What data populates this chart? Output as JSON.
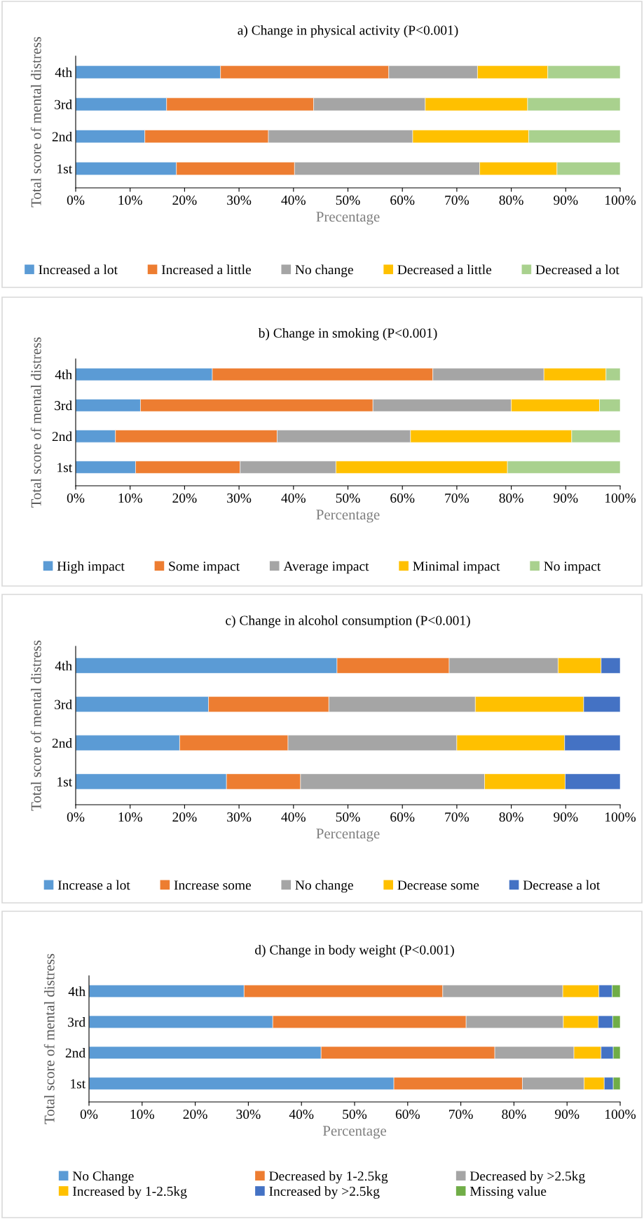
{
  "chart_data": [
    {
      "type": "bar",
      "orientation": "horizontal",
      "stacked": true,
      "title": "a) Change in physical activity (P<0.001)",
      "xlabel": "Precentage",
      "ylabel": "Total score of mental distress",
      "categories": [
        "4th",
        "3rd",
        "2nd",
        "1st"
      ],
      "xlim": [
        0,
        100
      ],
      "xticks": [
        {
          "value": 0,
          "label": "0%"
        },
        {
          "value": 10,
          "label": "10%"
        },
        {
          "value": 20,
          "label": "20%"
        },
        {
          "value": 30,
          "label": "30%"
        },
        {
          "value": 40,
          "label": "40%"
        },
        {
          "value": 50,
          "label": "50%"
        },
        {
          "value": 60,
          "label": "60%"
        },
        {
          "value": 70,
          "label": "70%"
        },
        {
          "value": 80,
          "label": "80%"
        },
        {
          "value": 90,
          "label": "90%"
        },
        {
          "value": 100,
          "label": "100%"
        }
      ],
      "grid": false,
      "legend": "bottom",
      "series": [
        {
          "name": "Increased a lot",
          "color": "#5b9bd5",
          "values": [
            26.6,
            16.7,
            12.7,
            18.5
          ]
        },
        {
          "name": "Increased a little",
          "color": "#ed7d31",
          "values": [
            30.9,
            27.0,
            22.7,
            21.7
          ]
        },
        {
          "name": "No change",
          "color": "#a5a5a5",
          "values": [
            16.3,
            20.5,
            26.5,
            34.0
          ]
        },
        {
          "name": "Decreased a little",
          "color": "#ffc000",
          "values": [
            12.9,
            18.8,
            21.3,
            14.2
          ]
        },
        {
          "name": "Decreased a lot",
          "color": "#a9d18e",
          "values": [
            13.3,
            17.0,
            16.8,
            11.6
          ]
        }
      ]
    },
    {
      "type": "bar",
      "orientation": "horizontal",
      "stacked": true,
      "title": "b) Change in smoking (P<0.001)",
      "xlabel": "Percentage",
      "ylabel": "Total score of mental distress",
      "categories": [
        "4th",
        "3rd",
        "2nd",
        "1st"
      ],
      "xlim": [
        0,
        100
      ],
      "xticks": [
        {
          "value": 0,
          "label": "0%"
        },
        {
          "value": 10,
          "label": "10%"
        },
        {
          "value": 20,
          "label": "20%"
        },
        {
          "value": 30,
          "label": "30%"
        },
        {
          "value": 40,
          "label": "40%"
        },
        {
          "value": 50,
          "label": "50%"
        },
        {
          "value": 60,
          "label": "60%"
        },
        {
          "value": 70,
          "label": "70%"
        },
        {
          "value": 80,
          "label": "80%"
        },
        {
          "value": 90,
          "label": "90%"
        },
        {
          "value": 100,
          "label": "100%"
        }
      ],
      "grid": false,
      "legend": "bottom",
      "series": [
        {
          "name": "High impact",
          "color": "#5b9bd5",
          "values": [
            25.1,
            11.9,
            7.3,
            11.0
          ]
        },
        {
          "name": "Some impact",
          "color": "#ed7d31",
          "values": [
            40.5,
            42.7,
            29.7,
            19.2
          ]
        },
        {
          "name": "Average impact",
          "color": "#a5a5a5",
          "values": [
            20.4,
            25.4,
            24.5,
            17.6
          ]
        },
        {
          "name": "Minimal impact",
          "color": "#ffc000",
          "values": [
            11.4,
            16.2,
            29.6,
            31.5
          ]
        },
        {
          "name": "No impact",
          "color": "#a9d18e",
          "values": [
            2.6,
            3.8,
            8.9,
            20.7
          ]
        }
      ]
    },
    {
      "type": "bar",
      "orientation": "horizontal",
      "stacked": true,
      "title": "c) Change in alcohol consumption (P<0.001)",
      "xlabel": "Percentage",
      "ylabel": "Total score of mental distress",
      "categories": [
        "4th",
        "3rd",
        "2nd",
        "1st"
      ],
      "xlim": [
        0,
        100
      ],
      "xticks": [
        {
          "value": 0,
          "label": "0%"
        },
        {
          "value": 10,
          "label": "10%"
        },
        {
          "value": 20,
          "label": "20%"
        },
        {
          "value": 30,
          "label": "30%"
        },
        {
          "value": 40,
          "label": "40%"
        },
        {
          "value": 50,
          "label": "50%"
        },
        {
          "value": 60,
          "label": "60%"
        },
        {
          "value": 70,
          "label": "70%"
        },
        {
          "value": 80,
          "label": "80%"
        },
        {
          "value": 90,
          "label": "90%"
        },
        {
          "value": 100,
          "label": "100%"
        }
      ],
      "grid": false,
      "legend": "bottom",
      "series": [
        {
          "name": "Increase a lot",
          "color": "#5b9bd5",
          "values": [
            48.0,
            24.4,
            19.1,
            27.7
          ]
        },
        {
          "name": "Increase some",
          "color": "#ed7d31",
          "values": [
            20.6,
            22.1,
            19.9,
            13.6
          ]
        },
        {
          "name": "No change",
          "color": "#a5a5a5",
          "values": [
            20.0,
            26.9,
            31.0,
            33.8
          ]
        },
        {
          "name": "Decrease some",
          "color": "#ffc000",
          "values": [
            7.9,
            19.9,
            19.8,
            14.8
          ]
        },
        {
          "name": "Decrease a lot",
          "color": "#4472c4",
          "values": [
            3.5,
            6.7,
            10.2,
            10.1
          ]
        }
      ]
    },
    {
      "type": "bar",
      "orientation": "horizontal",
      "stacked": true,
      "title": "d) Change in body weight (P<0.001)",
      "xlabel": "Percentage",
      "ylabel": "Total score of mental distress",
      "categories": [
        "4th",
        "3rd",
        "2nd",
        "1st"
      ],
      "xlim": [
        0,
        100
      ],
      "xticks": [
        {
          "value": 0,
          "label": "0%"
        },
        {
          "value": 10,
          "label": "10%"
        },
        {
          "value": 20,
          "label": "20%"
        },
        {
          "value": 30,
          "label": "30%"
        },
        {
          "value": 40,
          "label": "40%"
        },
        {
          "value": 50,
          "label": "50%"
        },
        {
          "value": 60,
          "label": "60%"
        },
        {
          "value": 70,
          "label": "70%"
        },
        {
          "value": 80,
          "label": "80%"
        },
        {
          "value": 90,
          "label": "90%"
        },
        {
          "value": 100,
          "label": "100%"
        }
      ],
      "grid": false,
      "legend": "bottom",
      "series": [
        {
          "name": "No Change",
          "color": "#5b9bd5",
          "values": [
            29.2,
            34.6,
            43.7,
            57.4
          ]
        },
        {
          "name": "Decreased by 1-2.5kg",
          "color": "#ed7d31",
          "values": [
            37.4,
            36.4,
            32.7,
            24.2
          ]
        },
        {
          "name": "Decreased by >2.5kg",
          "color": "#a5a5a5",
          "values": [
            22.6,
            18.3,
            14.9,
            11.6
          ]
        },
        {
          "name": "Increased by 1-2.5kg",
          "color": "#ffc000",
          "values": [
            6.8,
            6.6,
            5.1,
            3.8
          ]
        },
        {
          "name": "Increased by >2.5kg",
          "color": "#4472c4",
          "values": [
            2.5,
            2.7,
            2.3,
            1.7
          ]
        },
        {
          "name": "Missing value",
          "color": "#70ad47",
          "values": [
            1.5,
            1.4,
            1.3,
            1.3
          ]
        }
      ]
    }
  ]
}
